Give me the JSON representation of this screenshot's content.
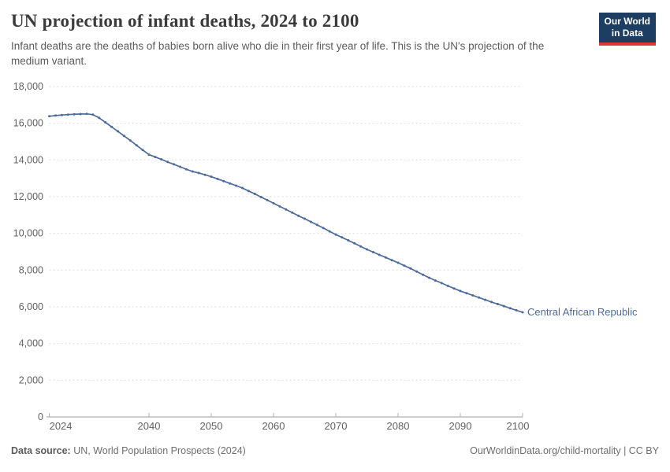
{
  "header": {
    "title": "UN projection of infant deaths, 2024 to 2100",
    "subtitle": "Infant deaths are the deaths of babies born alive who die in their first year of life. This is the UN's projection of the medium variant.",
    "logo": {
      "line1": "Our World",
      "line2": "in Data"
    }
  },
  "chart_data": {
    "type": "line",
    "title": "UN projection of infant deaths, 2024 to 2100",
    "xlabel": "",
    "ylabel": "",
    "xlim": [
      2024,
      2100
    ],
    "ylim": [
      0,
      18000
    ],
    "x_ticks": [
      2024,
      2040,
      2050,
      2060,
      2070,
      2080,
      2090,
      2100
    ],
    "y_ticks": [
      0,
      2000,
      4000,
      6000,
      8000,
      10000,
      12000,
      14000,
      16000,
      18000
    ],
    "grid": "dashed-horizontal",
    "legend_position": "end-of-line-label",
    "series": [
      {
        "name": "Central African Republic",
        "color": "#4c6a9c",
        "x": [
          2024,
          2025,
          2026,
          2027,
          2028,
          2029,
          2030,
          2031,
          2032,
          2033,
          2034,
          2035,
          2036,
          2037,
          2038,
          2039,
          2040,
          2041,
          2042,
          2043,
          2044,
          2045,
          2046,
          2047,
          2048,
          2049,
          2050,
          2051,
          2052,
          2053,
          2054,
          2055,
          2056,
          2057,
          2058,
          2059,
          2060,
          2061,
          2062,
          2063,
          2064,
          2065,
          2066,
          2067,
          2068,
          2069,
          2070,
          2071,
          2072,
          2073,
          2074,
          2075,
          2076,
          2077,
          2078,
          2079,
          2080,
          2081,
          2082,
          2083,
          2084,
          2085,
          2086,
          2087,
          2088,
          2089,
          2090,
          2091,
          2092,
          2093,
          2094,
          2095,
          2096,
          2097,
          2098,
          2099,
          2100
        ],
        "values": [
          16380,
          16420,
          16450,
          16470,
          16490,
          16500,
          16510,
          16470,
          16290,
          16050,
          15800,
          15560,
          15310,
          15060,
          14800,
          14540,
          14290,
          14160,
          14030,
          13890,
          13760,
          13630,
          13490,
          13370,
          13290,
          13190,
          13090,
          12970,
          12850,
          12720,
          12600,
          12470,
          12310,
          12150,
          11980,
          11810,
          11640,
          11470,
          11300,
          11130,
          10960,
          10800,
          10630,
          10460,
          10290,
          10110,
          9940,
          9780,
          9620,
          9460,
          9290,
          9130,
          8980,
          8830,
          8690,
          8540,
          8400,
          8240,
          8090,
          7920,
          7750,
          7580,
          7430,
          7290,
          7140,
          7000,
          6860,
          6740,
          6620,
          6500,
          6380,
          6260,
          6150,
          6040,
          5920,
          5810,
          5700
        ]
      }
    ],
    "colors": {
      "line": "#4c6a9c",
      "grid": "#dcdcdc",
      "axis": "#9e9e9e",
      "tick": "#b3b3b3",
      "tick_text": "#606060",
      "entity_label": "#4c6a9c"
    }
  },
  "footer": {
    "source_label": "Data source:",
    "source_text": " UN, World Population Prospects (2024)",
    "credit": "OurWorldinData.org/child-mortality | CC BY"
  }
}
